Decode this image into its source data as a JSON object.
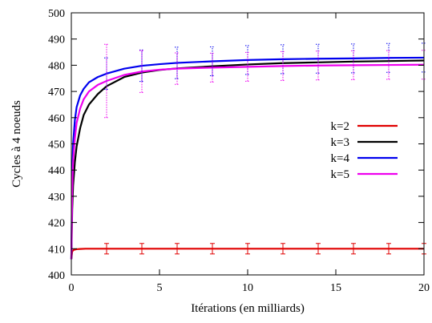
{
  "chart_data": {
    "type": "line",
    "xlabel": "Itérations (en milliards)",
    "ylabel": "Cycles à 4 noeuds",
    "xlim": [
      0,
      20
    ],
    "ylim": [
      400,
      500
    ],
    "x_ticks": [
      "0",
      "5",
      "10",
      "15",
      "20"
    ],
    "y_ticks": [
      "400",
      "410",
      "420",
      "430",
      "440",
      "450",
      "460",
      "470",
      "480",
      "490",
      "500"
    ],
    "grid": false,
    "legend_position": "center-right",
    "series": [
      {
        "name": "k=2",
        "color": "#e00000",
        "x": [
          0,
          0.05,
          0.15,
          0.3,
          0.5,
          0.8,
          1.2,
          1.6,
          2,
          3,
          4,
          6,
          8,
          10,
          12,
          14,
          16,
          18,
          20
        ],
        "y": [
          406,
          409,
          409.6,
          409.8,
          409.9,
          410,
          410,
          410,
          410,
          410,
          410,
          410,
          410,
          410,
          410,
          410,
          410,
          410,
          410
        ],
        "errorbars": {
          "x": [
            2,
            4,
            6,
            8,
            10,
            12,
            14,
            16,
            18,
            20
          ],
          "y": [
            410,
            410,
            410,
            410,
            410,
            410,
            410,
            410,
            410,
            410
          ],
          "err": [
            2,
            2,
            2,
            2,
            2,
            2,
            2,
            2,
            2,
            2
          ]
        }
      },
      {
        "name": "k=3",
        "color": "#000000",
        "x": [
          0,
          0.05,
          0.1,
          0.2,
          0.3,
          0.5,
          0.7,
          1,
          1.5,
          2,
          3,
          4,
          5,
          6,
          8,
          10,
          12,
          14,
          16,
          18,
          20
        ],
        "y": [
          406,
          425,
          434,
          443,
          449,
          456,
          461,
          465,
          469,
          472,
          475.5,
          477.2,
          478.2,
          478.8,
          479.6,
          480.3,
          480.8,
          481.1,
          481.4,
          481.6,
          481.8
        ]
      },
      {
        "name": "k=4",
        "color": "#0000ee",
        "x": [
          0,
          0.05,
          0.1,
          0.2,
          0.3,
          0.5,
          0.7,
          1,
          1.5,
          2,
          3,
          4,
          5,
          6,
          8,
          10,
          12,
          14,
          16,
          18,
          20
        ],
        "y": [
          406,
          438,
          450,
          459,
          464,
          468.5,
          471,
          473.5,
          475.5,
          476.8,
          478.7,
          479.8,
          480.4,
          480.9,
          481.5,
          482,
          482.3,
          482.5,
          482.6,
          482.8,
          482.9
        ],
        "errorbars": {
          "x": [
            2,
            4,
            6,
            8,
            10,
            12,
            14,
            16,
            18,
            20
          ],
          "y": [
            476.8,
            479.8,
            480.9,
            481.5,
            482,
            482.3,
            482.5,
            482.6,
            482.8,
            482.9
          ],
          "err": [
            6,
            6,
            6,
            5.5,
            5.5,
            5.5,
            5.5,
            5.5,
            5.5,
            5.5
          ]
        }
      },
      {
        "name": "k=5",
        "color": "#ee00ee",
        "x": [
          0,
          0.05,
          0.1,
          0.2,
          0.3,
          0.5,
          0.7,
          1,
          1.5,
          2,
          3,
          4,
          5,
          6,
          8,
          10,
          12,
          14,
          16,
          18,
          20
        ],
        "y": [
          406,
          432,
          443,
          452,
          458,
          463.5,
          467,
          470,
          472.5,
          474,
          476.3,
          477.6,
          478.3,
          478.7,
          479.1,
          479.4,
          479.7,
          479.9,
          480,
          480.1,
          480.2
        ],
        "errorbars": {
          "x": [
            2,
            4,
            6,
            8,
            10,
            12,
            14,
            16,
            18,
            20
          ],
          "y": [
            474,
            477.6,
            478.7,
            479.1,
            479.4,
            479.7,
            479.9,
            480,
            480.1,
            480.2
          ],
          "err": [
            14,
            8,
            6,
            5.5,
            5.5,
            5.5,
            5.5,
            5.5,
            5.5,
            5.5
          ]
        }
      }
    ]
  }
}
